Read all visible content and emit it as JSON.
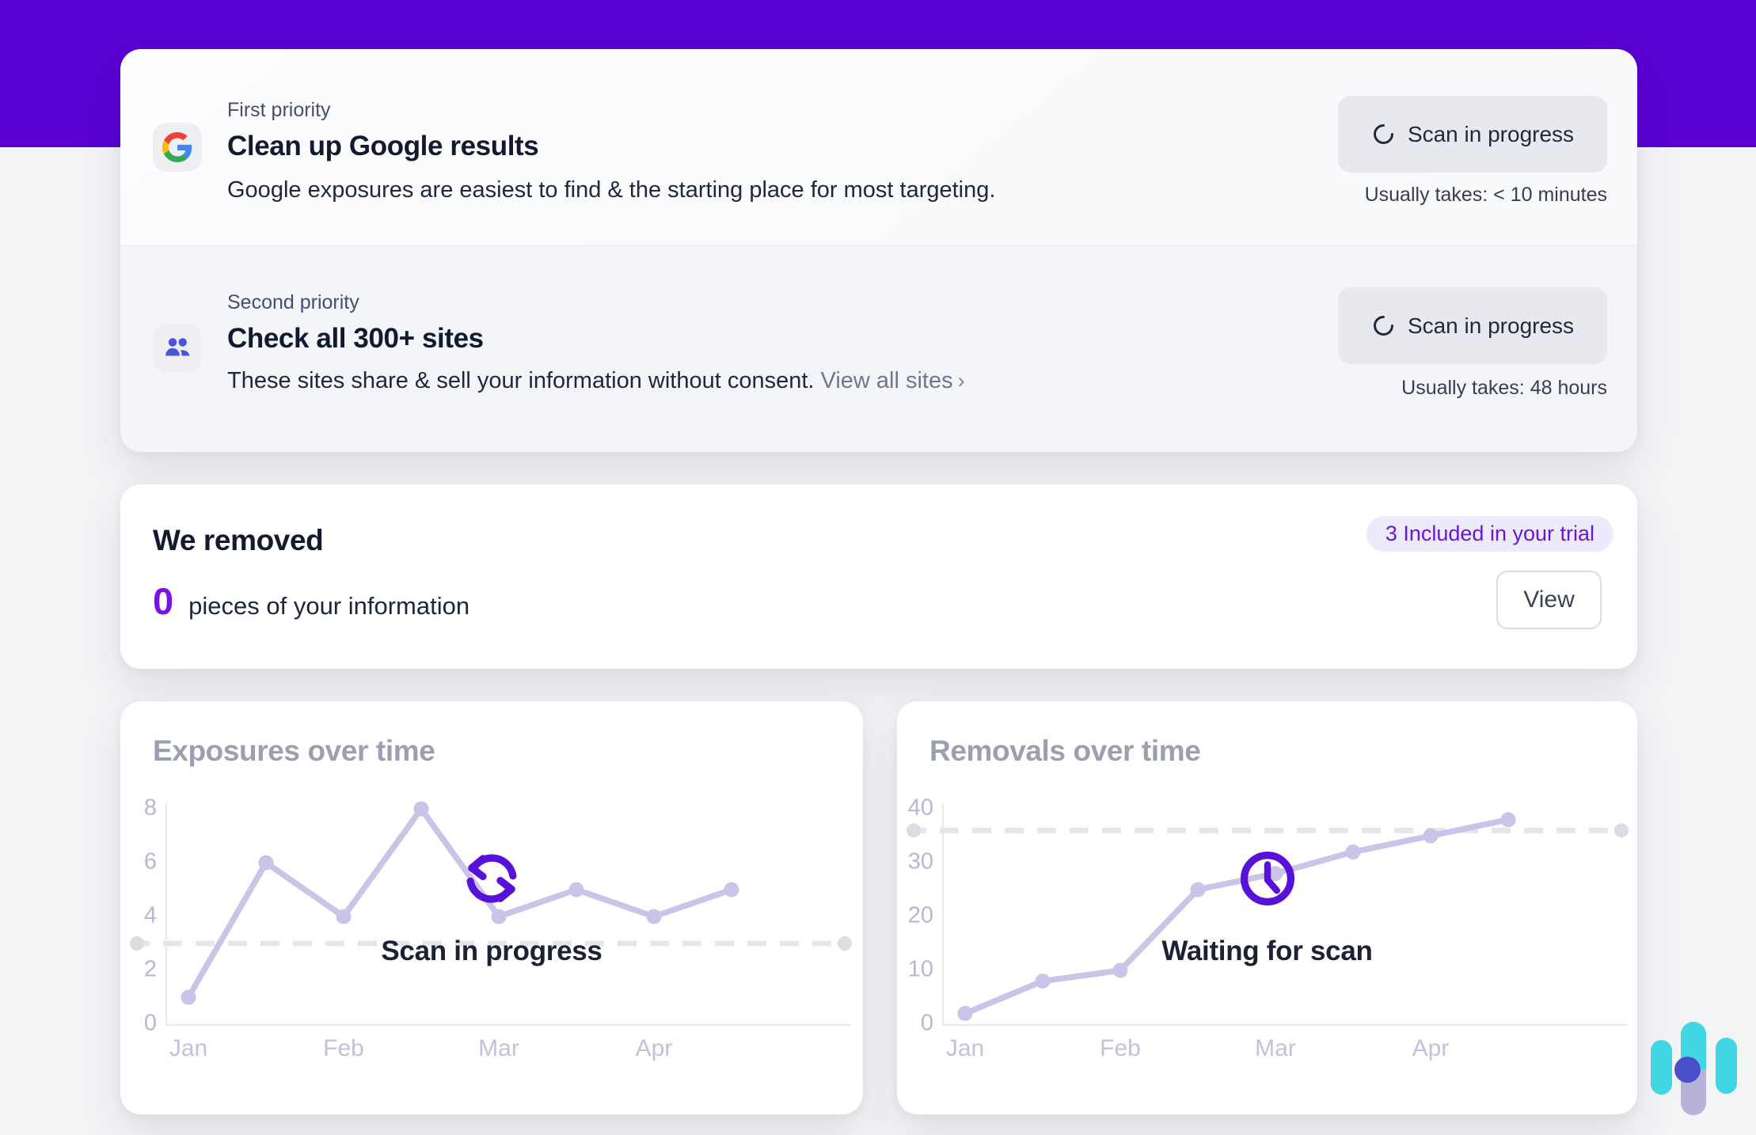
{
  "theme": {
    "header_purple": "#5a00d3",
    "accent_purple": "#7a12e8",
    "icon_purple": "#5711d9",
    "chart_line": "#c9c4e8",
    "widget_teal": "#41d6e4",
    "widget_indigo": "#4a50c8",
    "widget_lavender": "#b7b2da"
  },
  "priorities": {
    "rows": [
      {
        "label": "First priority",
        "title": "Clean up Google results",
        "description": "Google exposures are easiest to find & the starting place for most targeting.",
        "icon": "google-logo-icon",
        "button_label": "Scan in progress",
        "button_icon": "spinner-icon",
        "note": "Usually takes: < 10 minutes"
      },
      {
        "label": "Second priority",
        "title": "Check all 300+ sites",
        "description": "These sites share & sell your information without consent.",
        "link_label": "View all sites",
        "link_chevron": "›",
        "icon": "people-icon",
        "button_label": "Scan in progress",
        "button_icon": "spinner-icon",
        "note": "Usually takes: 48 hours"
      }
    ]
  },
  "removed": {
    "title": "We removed",
    "count": "0",
    "count_suffix": "pieces of your information",
    "badge": "3 Included in your trial",
    "view_button": "View"
  },
  "chart_data": [
    {
      "type": "line",
      "title": "Exposures over time",
      "x_tick_labels": [
        "Jan",
        "Feb",
        "Mar",
        "Apr"
      ],
      "points_per_label": 2,
      "values": [
        1,
        6,
        4,
        8,
        4,
        5,
        4,
        5
      ],
      "yticks": [
        0,
        2,
        4,
        6,
        8
      ],
      "ylim": [
        0,
        8
      ],
      "dashed_reference_value": 3,
      "grid": false,
      "legend": null,
      "line_color": "#c9c4e8",
      "overlay": {
        "icon": "refresh-icon",
        "text": "Scan in progress"
      }
    },
    {
      "type": "line",
      "title": "Removals over time",
      "x_tick_labels": [
        "Jan",
        "Feb",
        "Mar",
        "Apr"
      ],
      "points_per_label": 2,
      "values": [
        2,
        8,
        10,
        25,
        28,
        32,
        35,
        38
      ],
      "yticks": [
        0,
        10,
        20,
        30,
        40
      ],
      "ylim": [
        0,
        40
      ],
      "dashed_reference_value": 36,
      "grid": false,
      "legend": null,
      "line_color": "#c9c4e8",
      "overlay": {
        "icon": "clock-icon",
        "text": "Waiting for scan"
      }
    }
  ]
}
